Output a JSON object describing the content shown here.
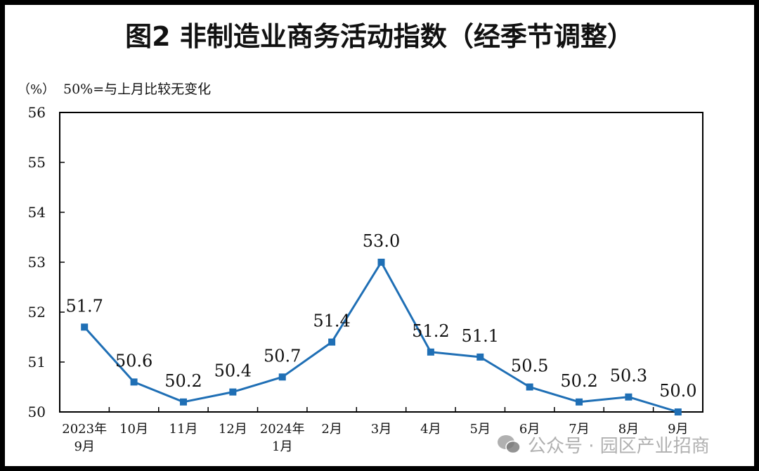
{
  "chart_data": {
    "type": "line",
    "title": "图2  非制造业商务活动指数（经季节调整）",
    "unit_label": "（%）",
    "note": "50%=与上月比较无变化",
    "categories": [
      [
        "2023年",
        "9月"
      ],
      [
        "10月"
      ],
      [
        "11月"
      ],
      [
        "12月"
      ],
      [
        "2024年",
        "1月"
      ],
      [
        "2月"
      ],
      [
        "3月"
      ],
      [
        "4月"
      ],
      [
        "5月"
      ],
      [
        "6月"
      ],
      [
        "7月"
      ],
      [
        "8月"
      ],
      [
        "9月"
      ]
    ],
    "values": [
      51.7,
      50.6,
      50.2,
      50.4,
      50.7,
      51.4,
      53.0,
      51.2,
      51.1,
      50.5,
      50.2,
      50.3,
      50.0
    ],
    "value_labels": [
      "51.7",
      "50.6",
      "50.2",
      "50.4",
      "50.7",
      "51.4",
      "53.0",
      "51.2",
      "51.1",
      "50.5",
      "50.2",
      "50.3",
      "50.0"
    ],
    "ylim": [
      50,
      56
    ],
    "yticks": [
      "50",
      "51",
      "52",
      "53",
      "54",
      "55",
      "56"
    ],
    "grid": false,
    "line_color": "#1F6FB5"
  },
  "watermark": {
    "text": "公众号 · 园区产业招商"
  }
}
